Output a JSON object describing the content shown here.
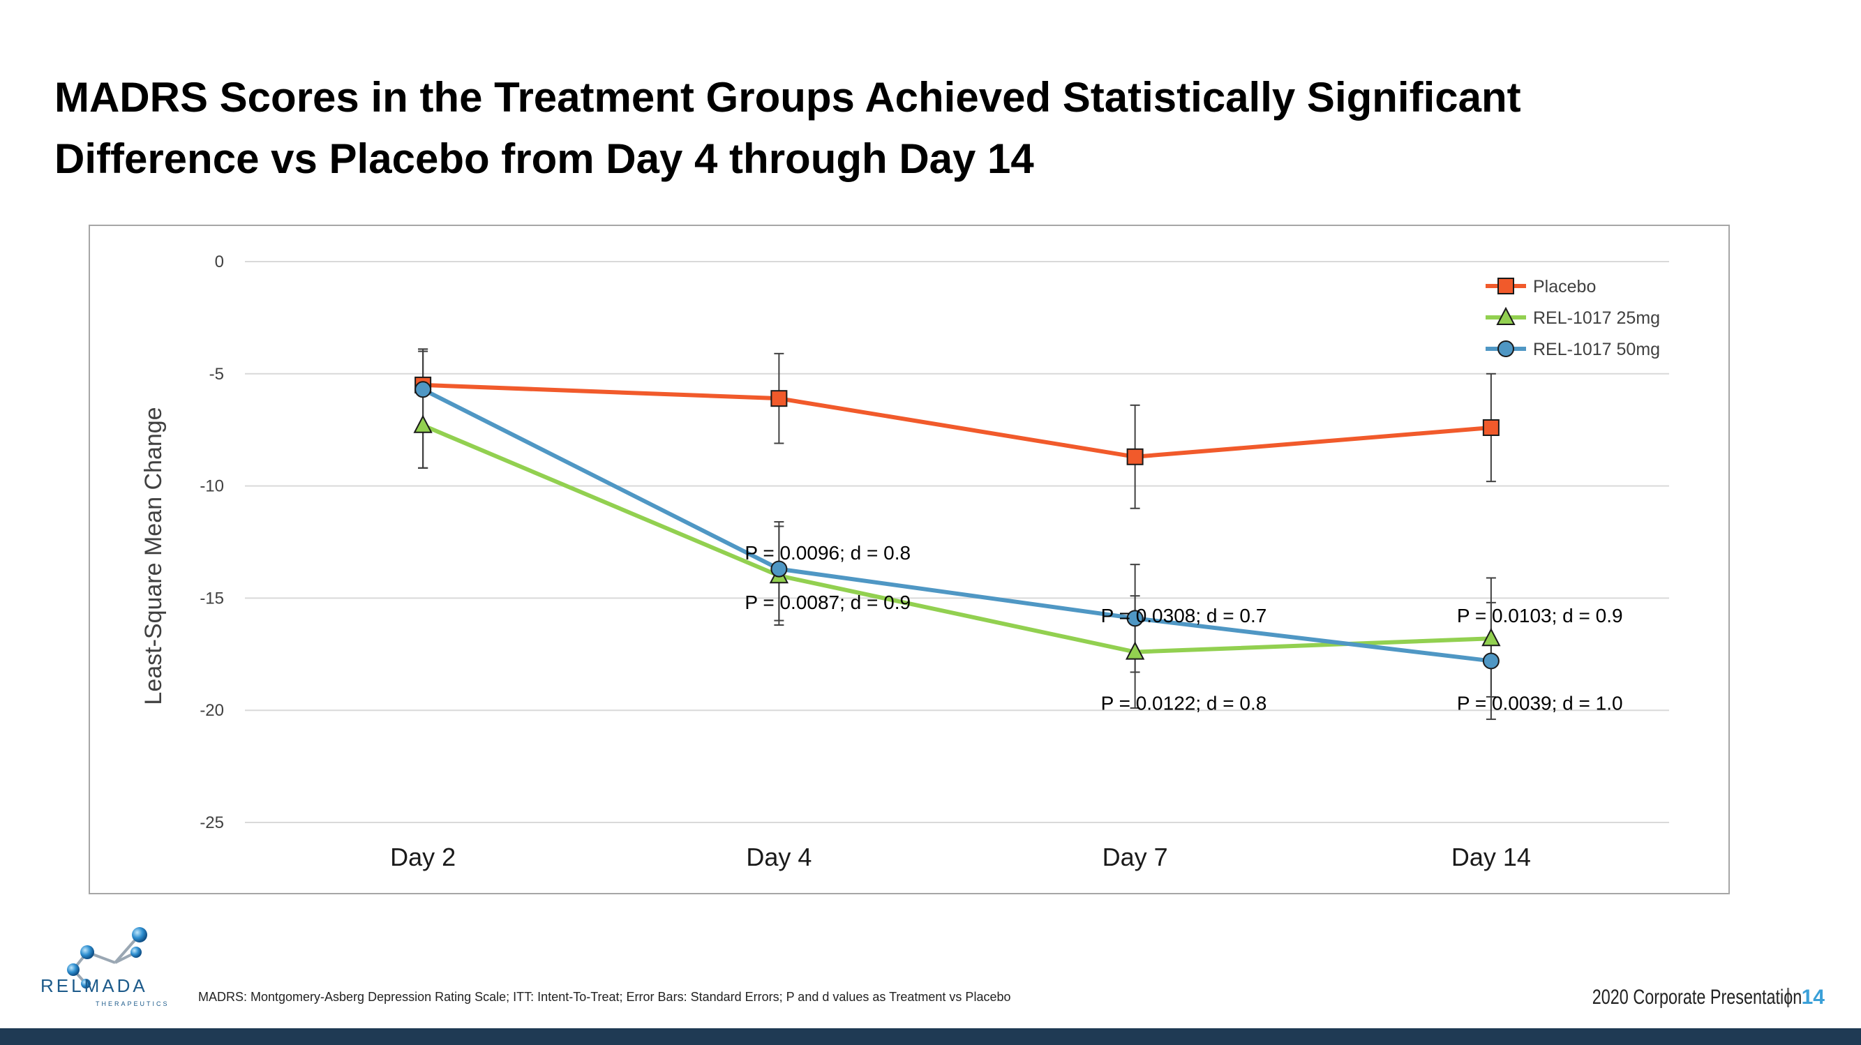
{
  "slide": {
    "title_line1": "MADRS Scores in the Treatment Groups Achieved Statistically Significant",
    "title_line2": "Difference vs Placebo from Day 4 through Day 14",
    "footnote": "MADRS: Montgomery-Asberg Depression Rating Scale; ITT: Intent-To-Treat; Error Bars: Standard Errors; P and d values as Treatment vs Placebo",
    "presentation": "2020 Corporate Presentation",
    "page_number": "14",
    "logo_text": "RELMADA",
    "logo_subtext": "THERAPEUTICS"
  },
  "colors": {
    "placebo": "#f15a2b",
    "rel25": "#92d050",
    "rel50": "#4f97c4",
    "grid": "#d9d9d9",
    "errbar": "#404040",
    "bottom_bar": "#1f3a54",
    "accent": "#3aa0d8"
  },
  "chart_data": {
    "type": "line",
    "categories": [
      "Day 2",
      "Day 4",
      "Day 7",
      "Day 14"
    ],
    "ylabel": "Least-Square Mean Change",
    "xlabel": "",
    "ylim": [
      -25,
      0
    ],
    "yticks": [
      0,
      -5,
      -10,
      -15,
      -20,
      -25
    ],
    "grid": true,
    "legend": "top-right",
    "series": [
      {
        "name": "Placebo",
        "color": "#f15a2b",
        "marker": "square",
        "values": [
          -5.5,
          -6.1,
          -8.7,
          -7.4
        ],
        "err_low": [
          -9.2,
          -8.1,
          -11.0,
          -9.8
        ],
        "err_high": [
          -3.9,
          -4.1,
          -6.4,
          -5.0
        ]
      },
      {
        "name": "REL-1017 25mg",
        "color": "#92d050",
        "marker": "triangle",
        "values": [
          -7.3,
          -14.0,
          -17.4,
          -16.8
        ],
        "err_low": [
          -9.2,
          -16.2,
          -19.9,
          -19.4
        ],
        "err_high": [
          -3.9,
          -11.6,
          -14.9,
          -14.1
        ]
      },
      {
        "name": "REL-1017 50mg",
        "color": "#4f97c4",
        "marker": "circle",
        "values": [
          -5.7,
          -13.7,
          -15.9,
          -17.8
        ],
        "err_low": [
          -9.2,
          -16.0,
          -18.3,
          -20.4
        ],
        "err_high": [
          -4.0,
          -11.8,
          -13.5,
          -15.2
        ]
      }
    ],
    "annotations": [
      {
        "category": "Day 4",
        "text": "P = 0.0096; d = 0.8",
        "y": -13.0
      },
      {
        "category": "Day 4",
        "text": "P = 0.0087; d = 0.9",
        "y": -15.2
      },
      {
        "category": "Day 7",
        "text": "P = 0.0308; d = 0.7",
        "y": -15.8
      },
      {
        "category": "Day 7",
        "text": "P = 0.0122; d = 0.8",
        "y": -19.7
      },
      {
        "category": "Day 14",
        "text": "P = 0.0103; d = 0.9",
        "y": -15.8
      },
      {
        "category": "Day 14",
        "text": "P = 0.0039; d = 1.0",
        "y": -19.7
      }
    ]
  }
}
